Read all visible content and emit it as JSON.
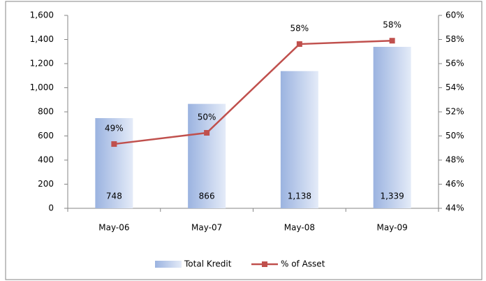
{
  "chart_data": {
    "type": "bar",
    "categories": [
      "May-06",
      "May-07",
      "May-08",
      "May-09"
    ],
    "series": [
      {
        "name": "Total Kredit",
        "type": "bar",
        "color": "#9bb3e0",
        "values": [
          748,
          866,
          1138,
          1339
        ],
        "value_labels": [
          "748",
          "866",
          "1,138",
          "1,339"
        ]
      },
      {
        "name": "% of Asset",
        "type": "line",
        "axis": "y2",
        "color": "#c0504d",
        "values": [
          49.33,
          50.26,
          57.62,
          57.9
        ],
        "value_labels": [
          "49%",
          "50%",
          "58%",
          "58%"
        ]
      }
    ],
    "ylim": [
      0,
      1600
    ],
    "yticks": [
      0,
      200,
      400,
      600,
      800,
      {
        "value": 1000,
        "label": "1,000"
      },
      {
        "value": 1200,
        "label": "1,200"
      },
      {
        "value": 1400,
        "label": "1,400"
      },
      {
        "value": 1600,
        "label": "1,600"
      }
    ],
    "y2lim": [
      44,
      60
    ],
    "y2ticks": [
      {
        "value": 44,
        "label": "44%"
      },
      {
        "value": 46,
        "label": "46%"
      },
      {
        "value": 48,
        "label": "48%"
      },
      {
        "value": 50,
        "label": "50%"
      },
      {
        "value": 52,
        "label": "52%"
      },
      {
        "value": 54,
        "label": "54%"
      },
      {
        "value": 56,
        "label": "56%"
      },
      {
        "value": 58,
        "label": "58%"
      },
      {
        "value": 60,
        "label": "60%"
      }
    ],
    "legend": "bottom",
    "grid": false
  }
}
